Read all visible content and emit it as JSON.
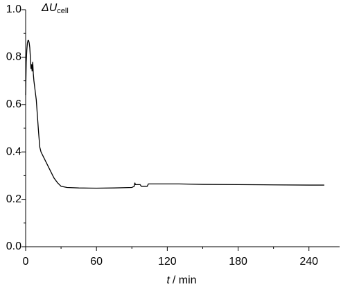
{
  "chart_data": {
    "type": "line",
    "ylabel": {
      "main": "ΔU",
      "sub": "cell"
    },
    "xlabel": {
      "symbol": "t",
      "unit": "/ min"
    },
    "x": [
      0,
      0.5,
      1,
      1.5,
      2,
      2.5,
      3,
      3.5,
      4,
      4.5,
      5,
      5.5,
      6,
      6.5,
      7,
      8,
      9,
      10,
      11,
      12,
      13,
      15,
      18,
      21,
      24,
      27,
      30,
      35,
      45,
      60,
      75,
      90,
      92,
      92.5,
      93,
      97,
      98,
      103,
      104,
      110,
      130,
      150,
      180,
      210,
      240,
      253
    ],
    "values": [
      0.64,
      0.78,
      0.83,
      0.86,
      0.87,
      0.87,
      0.86,
      0.84,
      0.8,
      0.75,
      0.77,
      0.74,
      0.78,
      0.73,
      0.7,
      0.66,
      0.62,
      0.55,
      0.48,
      0.42,
      0.4,
      0.38,
      0.35,
      0.32,
      0.29,
      0.27,
      0.255,
      0.25,
      0.248,
      0.247,
      0.248,
      0.25,
      0.255,
      0.27,
      0.262,
      0.262,
      0.255,
      0.255,
      0.265,
      0.265,
      0.265,
      0.263,
      0.262,
      0.261,
      0.26,
      0.26
    ],
    "color": "#000000",
    "xlim": [
      0,
      266
    ],
    "xticks": [
      0,
      60,
      120,
      180,
      240
    ],
    "xminorticks": [
      30,
      90,
      150,
      210
    ],
    "ylim": [
      0,
      1
    ],
    "yticks": [
      {
        "value": 0,
        "label": "0.0"
      },
      0.2,
      0.4,
      0.6,
      0.8,
      {
        "value": 1,
        "label": "1.0"
      }
    ],
    "yminorticks": [
      0.1,
      0.3,
      0.5,
      0.7,
      0.9
    ]
  }
}
